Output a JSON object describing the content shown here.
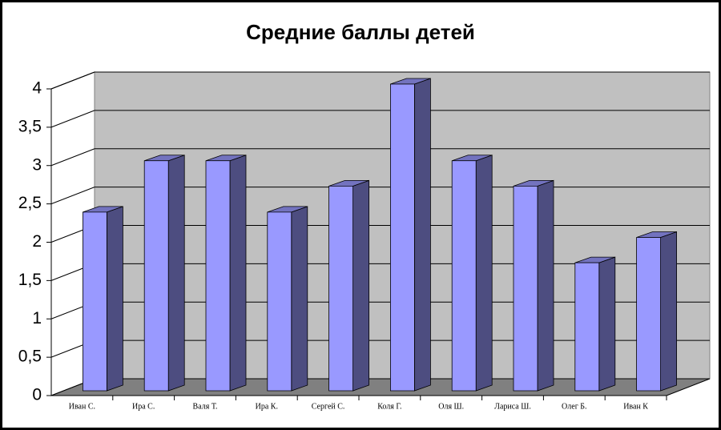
{
  "chart_data": {
    "type": "bar3d",
    "title": "Средние баллы детей",
    "categories": [
      "Иван С.",
      "Ира С.",
      "Валя Т.",
      "Ира К.",
      "Сергей С.",
      "Коля Г.",
      "Оля Ш.",
      "Лариса Ш.",
      "Олег Б.",
      "Иван К"
    ],
    "values": [
      2.33,
      3,
      3,
      2.33,
      2.67,
      4,
      3,
      2.67,
      1.67,
      2
    ],
    "color": "#9999ff",
    "ylim": [
      0,
      4
    ],
    "yticks": [
      0,
      {
        "value": 0.5,
        "label": "0,5"
      },
      1,
      {
        "value": 1.5,
        "label": "1,5"
      },
      2,
      {
        "value": 2.5,
        "label": "2,5"
      },
      3,
      {
        "value": 3.5,
        "label": "3,5"
      },
      4
    ],
    "grid": true
  }
}
